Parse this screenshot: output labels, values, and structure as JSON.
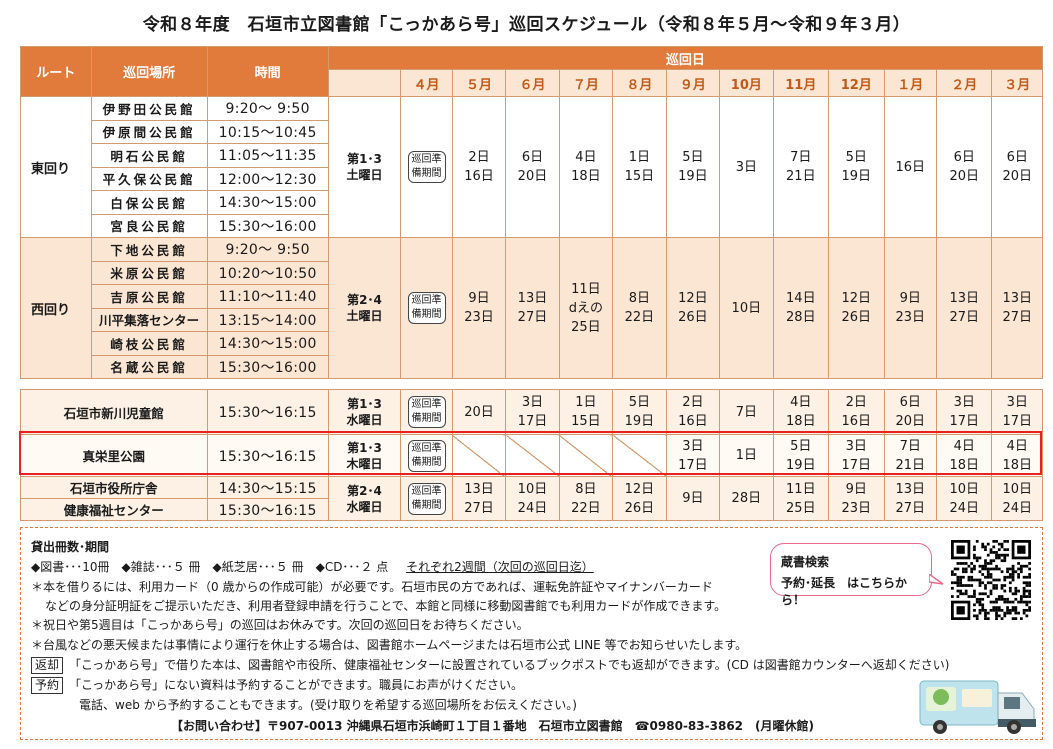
{
  "title": "令和８年度　石垣市立図書館「こっかあら号」巡回スケジュール（令和８年５月～令和９年３月）",
  "headers": {
    "route": "ルート",
    "place": "巡回場所",
    "time": "時間",
    "days": "巡回日",
    "months": [
      "４月",
      "５月",
      "６月",
      "７月",
      "８月",
      "９月",
      "10月",
      "11月",
      "12月",
      "１月",
      "２月",
      "３月"
    ]
  },
  "prep_label": [
    "巡回準",
    "備期間"
  ],
  "east": {
    "route": "東回り",
    "week": [
      "第1･3",
      "土曜日"
    ],
    "places": [
      "伊野田公民館",
      "伊原間公民館",
      "明石公民館",
      "平久保公民館",
      "白保公民館",
      "宮良公民館"
    ],
    "times": [
      "9:20～ 9:50",
      "10:15～10:45",
      "11:05～11:35",
      "12:00～12:30",
      "14:30～15:00",
      "15:30～16:00"
    ],
    "dates": [
      [
        "2日",
        "16日"
      ],
      [
        "6日",
        "20日"
      ],
      [
        "4日",
        "18日"
      ],
      [
        "1日",
        "15日"
      ],
      [
        "5日",
        "19日"
      ],
      [
        "3日"
      ],
      [
        "7日",
        "21日"
      ],
      [
        "5日",
        "19日"
      ],
      [
        "16日"
      ],
      [
        "6日",
        "20日"
      ],
      [
        "6日",
        "20日"
      ]
    ]
  },
  "west": {
    "route": "西回り",
    "week": [
      "第2･4",
      "土曜日"
    ],
    "places": [
      "下地公民館",
      "米原公民館",
      "吉原公民館",
      "川平集落センター",
      "崎枝公民館",
      "名蔵公民館"
    ],
    "times": [
      "9:20～ 9:50",
      "10:20～10:50",
      "11:10～11:40",
      "13:15～14:00",
      "14:30～15:00",
      "15:30～16:00"
    ],
    "dates": [
      [
        "9日",
        "23日"
      ],
      [
        "13日",
        "27日"
      ],
      [
        "11日",
        "dえの",
        "25日"
      ],
      [
        "8日",
        "22日"
      ],
      [
        "12日",
        "26日"
      ],
      [
        "10日"
      ],
      [
        "14日",
        "28日"
      ],
      [
        "12日",
        "26日"
      ],
      [
        "9日",
        "23日"
      ],
      [
        "13日",
        "27日"
      ],
      [
        "13日",
        "27日"
      ]
    ]
  },
  "others": [
    {
      "place": "石垣市新川児童館",
      "time": "15:30～16:15",
      "week": [
        "第1･3",
        "水曜日"
      ],
      "dates": [
        [
          "20日"
        ],
        [
          "3日",
          "17日"
        ],
        [
          "1日",
          "15日"
        ],
        [
          "5日",
          "19日"
        ],
        [
          "2日",
          "16日"
        ],
        [
          "7日"
        ],
        [
          "4日",
          "18日"
        ],
        [
          "2日",
          "16日"
        ],
        [
          "6日",
          "20日"
        ],
        [
          "3日",
          "17日"
        ],
        [
          "3日",
          "17日"
        ]
      ]
    },
    {
      "place": "真栄里公園",
      "time": "15:30～16:15",
      "week": [
        "第1･3",
        "木曜日"
      ],
      "dates": [
        null,
        null,
        null,
        null,
        [
          "3日",
          "17日"
        ],
        [
          "1日"
        ],
        [
          "5日",
          "19日"
        ],
        [
          "3日",
          "17日"
        ],
        [
          "7日",
          "21日"
        ],
        [
          "4日",
          "18日"
        ],
        [
          "4日",
          "18日"
        ]
      ]
    }
  ],
  "shared": {
    "places": [
      "石垣市役所庁舎",
      "健康福祉センター"
    ],
    "times": [
      "14:30～15:15",
      "15:30～16:15"
    ],
    "week": [
      "第2･4",
      "水曜日"
    ],
    "dates": [
      [
        "13日",
        "27日"
      ],
      [
        "10日",
        "24日"
      ],
      [
        "8日",
        "22日"
      ],
      [
        "12日",
        "26日"
      ],
      [
        "9日"
      ],
      [
        "28日"
      ],
      [
        "11日",
        "25日"
      ],
      [
        "9日",
        "23日"
      ],
      [
        "13日",
        "27日"
      ],
      [
        "10日",
        "24日"
      ],
      [
        "10日",
        "24日"
      ]
    ]
  },
  "info": {
    "heading": "貸出冊数･期間",
    "limits": "◆図書･･･10冊　◆雑誌･･･５ 冊　◆紙芝居･･･５ 冊　◆CD･･･２ 点",
    "period": "それぞれ2週間（次回の巡回日迄）",
    "note1a": "＊本を借りるには、利用カード（0 歳からの作成可能）が必要です。石垣市民の方であれば、運転免許証やマイナンバーカード",
    "note1b": "などの身分証明証をご提示いただき、利用者登録申請を行うことで、本館と同様に移動図書館でも利用カードが作成できます。",
    "note2": "＊祝日や第5週目は「こっかあら号」の巡回はお休みです。次回の巡回日をお待ちください。",
    "note3": "＊台風などの悪天候または事情により運行を休止する場合は、図書館ホームページまたは石垣市公式 LINE 等でお知らせいたします。",
    "return_tag": "返却",
    "return_text": "「こっかあら号」で借りた本は、図書館や市役所、健康福祉センターに設置されているブックポストでも返却ができます。(CD は図書館カウンターへ返却ください)",
    "reserve_tag": "予約",
    "reserve_text": "「こっかあら号」にない資料は予約することができます。職員にお声がけください。",
    "reserve_text2": "電話、web から予約することもできます。(受け取りを希望する巡回場所をお伝えください。)",
    "contact": "【お問い合わせ】〒907-0013 沖縄県石垣市浜崎町１丁目１番地　石垣市立図書館　☎0980-83-3862　(月曜休館)"
  },
  "bubble": {
    "line1": "蔵書検索",
    "line2a": "予約･延長",
    "line2b": "はこちらから！"
  },
  "colors": {
    "header": "#e07b3b",
    "tint": "#fbe6d4",
    "highlight": "#e8201f",
    "bubble": "#e86a8a"
  }
}
